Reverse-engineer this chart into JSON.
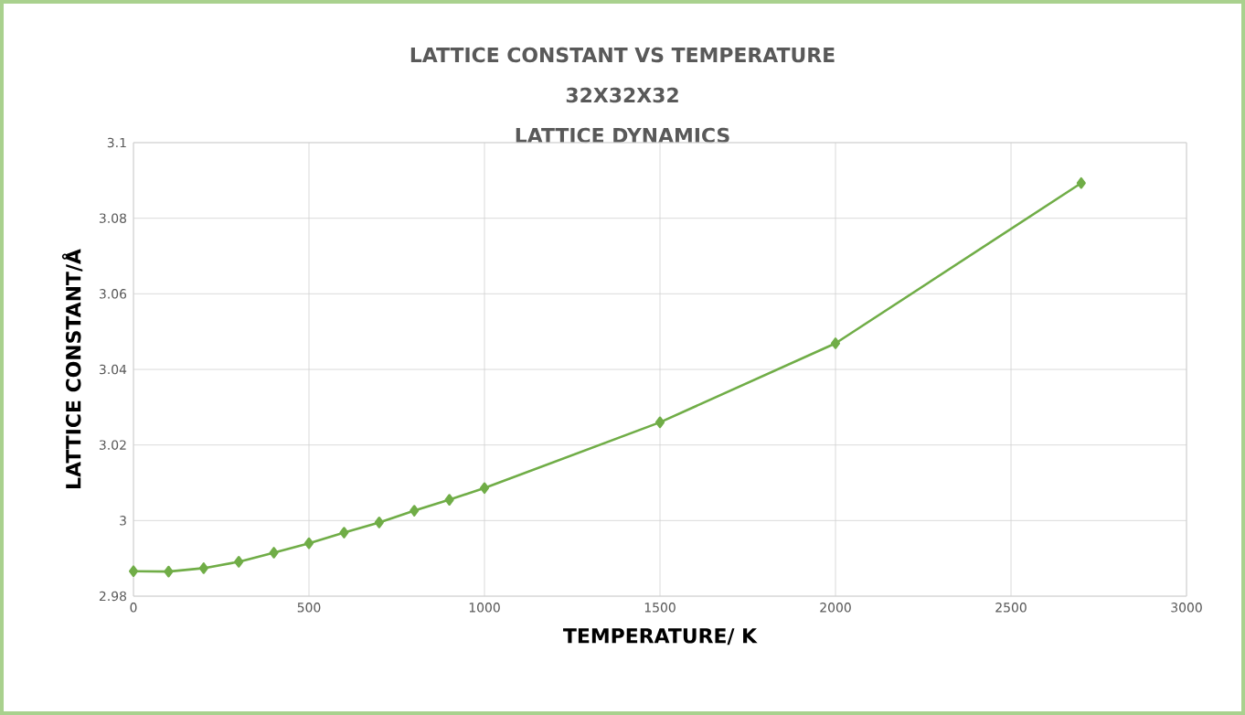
{
  "chart_data": {
    "type": "line",
    "title": "LATTICE CONSTANT VS TEMPERATURE",
    "subtitle": "32X32X32",
    "annotations": [
      "LATTICE DYNAMICS"
    ],
    "xlabel": "TEMPERATURE/ K",
    "ylabel": "LATTICE CONSTANT/Å",
    "x": [
      0,
      100,
      200,
      300,
      400,
      500,
      600,
      700,
      800,
      900,
      1000,
      1500,
      2000,
      2700
    ],
    "series": [
      {
        "color": "#70ad47",
        "values": [
          2.9866,
          2.9865,
          2.9874,
          2.9891,
          2.9915,
          2.994,
          2.9968,
          2.9995,
          3.0026,
          3.0055,
          3.0086,
          3.026,
          3.0469,
          3.0893
        ]
      }
    ],
    "xlim": [
      0,
      3000
    ],
    "xticks": [
      0,
      500,
      1000,
      1500,
      2000,
      2500,
      3000
    ],
    "ylim": [
      2.98,
      3.1
    ],
    "yticks": [
      2.98,
      3,
      3.02,
      3.04,
      3.06,
      3.08,
      3.1
    ],
    "grid": true,
    "marker": "diamond",
    "line_style": "solid"
  }
}
